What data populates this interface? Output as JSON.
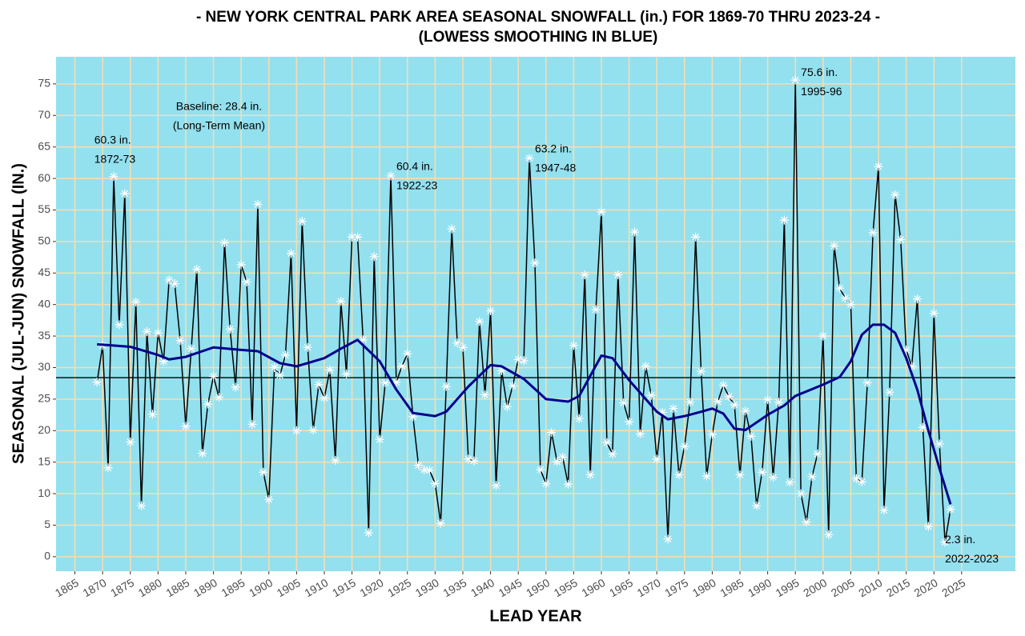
{
  "chart_data": {
    "type": "line",
    "title": [
      "- NEW YORK CENTRAL PARK AREA SEASONAL SNOWFALL (in.) FOR 1869-70 THRU 2023-24 -",
      "(LOWESS SMOOTHING IN BLUE)"
    ],
    "x_label": "LEAD YEAR",
    "y_label": "SEASONAL (JUL-JUN) SNOWFALL (IN.)",
    "x": [
      1869,
      1870,
      1871,
      1872,
      1873,
      1874,
      1875,
      1876,
      1877,
      1878,
      1879,
      1880,
      1881,
      1882,
      1883,
      1884,
      1885,
      1886,
      1887,
      1888,
      1889,
      1890,
      1891,
      1892,
      1893,
      1894,
      1895,
      1896,
      1897,
      1898,
      1899,
      1900,
      1901,
      1902,
      1903,
      1904,
      1905,
      1906,
      1907,
      1908,
      1909,
      1910,
      1911,
      1912,
      1913,
      1914,
      1915,
      1916,
      1917,
      1918,
      1919,
      1920,
      1921,
      1922,
      1923,
      1924,
      1925,
      1926,
      1927,
      1928,
      1929,
      1930,
      1931,
      1932,
      1933,
      1934,
      1935,
      1936,
      1937,
      1938,
      1939,
      1940,
      1941,
      1942,
      1943,
      1944,
      1945,
      1946,
      1947,
      1948,
      1949,
      1950,
      1951,
      1952,
      1953,
      1954,
      1955,
      1956,
      1957,
      1958,
      1959,
      1960,
      1961,
      1962,
      1963,
      1964,
      1965,
      1966,
      1967,
      1968,
      1969,
      1970,
      1971,
      1972,
      1973,
      1974,
      1975,
      1976,
      1977,
      1978,
      1979,
      1980,
      1981,
      1982,
      1983,
      1984,
      1985,
      1986,
      1987,
      1988,
      1989,
      1990,
      1991,
      1992,
      1993,
      1994,
      1995,
      1996,
      1997,
      1998,
      1999,
      2000,
      2001,
      2002,
      2003,
      2004,
      2005,
      2006,
      2007,
      2008,
      2009,
      2010,
      2011,
      2012,
      2013,
      2014,
      2015,
      2016,
      2017,
      2018,
      2019,
      2020,
      2021,
      2022,
      2023
    ],
    "series": [
      {
        "name": "Seasonal snowfall",
        "color": "#000000",
        "marker_color": "#ffffff",
        "values": [
          27.7,
          33.5,
          14.1,
          60.3,
          36.8,
          57.6,
          18.2,
          40.4,
          8.1,
          35.7,
          22.6,
          35.5,
          31.0,
          43.9,
          43.3,
          34.3,
          20.7,
          33.0,
          45.6,
          16.4,
          24.2,
          28.6,
          25.3,
          49.8,
          36.1,
          26.9,
          46.3,
          43.6,
          21.0,
          55.9,
          13.4,
          9.1,
          30.0,
          28.8,
          32.0,
          48.1,
          20.0,
          53.2,
          33.2,
          20.1,
          27.3,
          25.2,
          29.6,
          15.3,
          40.5,
          29.0,
          50.7,
          50.7,
          34.4,
          3.8,
          47.6,
          18.6,
          27.6,
          60.4,
          27.7,
          30.2,
          32.2,
          22.2,
          14.5,
          13.8,
          13.7,
          11.6,
          5.3,
          27.0,
          52.0,
          33.9,
          33.2,
          15.5,
          15.2,
          37.3,
          25.7,
          39.0,
          11.3,
          29.5,
          23.8,
          27.1,
          31.3,
          31.1,
          63.2,
          46.6,
          13.8,
          11.6,
          19.7,
          15.1,
          15.8,
          11.5,
          33.5,
          21.9,
          44.7,
          13.0,
          39.2,
          54.7,
          18.1,
          16.3,
          44.7,
          24.4,
          21.4,
          51.5,
          19.5,
          30.2,
          25.6,
          15.5,
          22.9,
          2.8,
          23.5,
          13.0,
          17.5,
          24.5,
          50.7,
          29.4,
          12.8,
          19.4,
          24.6,
          27.2,
          25.4,
          24.1,
          13.0,
          23.1,
          19.1,
          8.1,
          13.4,
          24.9,
          12.6,
          24.5,
          53.4,
          11.8,
          75.6,
          10.0,
          5.5,
          12.7,
          16.3,
          35.0,
          3.5,
          49.3,
          42.6,
          41.0,
          40.0,
          12.4,
          11.9,
          27.6,
          51.4,
          61.9,
          7.4,
          26.1,
          57.4,
          50.3,
          32.8,
          30.2,
          40.9,
          20.5,
          4.8,
          38.6,
          17.9,
          2.3,
          7.5
        ]
      },
      {
        "name": "LOWESS",
        "color": "#00008b",
        "x": [
          1869,
          1875,
          1880,
          1882,
          1885,
          1890,
          1895,
          1898,
          1902,
          1905,
          1910,
          1913,
          1916,
          1920,
          1923,
          1926,
          1930,
          1932,
          1936,
          1940,
          1942,
          1946,
          1950,
          1954,
          1956,
          1960,
          1962,
          1965,
          1970,
          1972,
          1975,
          1978,
          1980,
          1982,
          1984,
          1986,
          1990,
          1993,
          1995,
          2000,
          2003,
          2005,
          2007,
          2009,
          2011,
          2013,
          2015,
          2017,
          2019,
          2021,
          2023
        ],
        "values": [
          33.7,
          33.3,
          32.0,
          31.3,
          31.7,
          33.2,
          32.8,
          32.6,
          30.7,
          30.2,
          31.5,
          33.0,
          34.4,
          31.0,
          26.5,
          22.8,
          22.3,
          23.0,
          27.0,
          30.4,
          30.2,
          28.2,
          25.0,
          24.6,
          25.5,
          31.9,
          31.5,
          28.0,
          23.0,
          21.8,
          22.3,
          23.0,
          23.5,
          22.7,
          20.3,
          20.1,
          22.5,
          24.0,
          25.5,
          27.3,
          28.5,
          31.0,
          35.2,
          36.8,
          36.8,
          35.5,
          31.5,
          26.5,
          20.0,
          14.0,
          8.3
        ]
      }
    ],
    "baseline": 28.4,
    "annotations": [
      {
        "text": [
          "Baseline: 28.4 in.",
          "(Long-Term Mean)"
        ],
        "x": 1891,
        "y": 71.3,
        "anchor": "middle"
      },
      {
        "text": [
          "60.3 in.",
          "1872-73"
        ],
        "x": 1868.5,
        "y": 66.0,
        "anchor": "start"
      },
      {
        "text": [
          "60.4 in.",
          "1922-23"
        ],
        "x": 1923,
        "y": 61.8,
        "anchor": "start"
      },
      {
        "text": [
          "63.2 in.",
          "1947-48"
        ],
        "x": 1948,
        "y": 64.6,
        "anchor": "start"
      },
      {
        "text": [
          "75.6 in.",
          "1995-96"
        ],
        "x": 1996,
        "y": 76.7,
        "anchor": "start"
      },
      {
        "text": [
          "2.3 in.",
          "2022-2023"
        ],
        "x": 2022,
        "y": 2.6,
        "anchor": "start"
      }
    ],
    "xlim": [
      1861.6,
      2034.7
    ],
    "ylim": [
      -2.3,
      79.3
    ],
    "xticks": [
      1865,
      1870,
      1875,
      1880,
      1885,
      1890,
      1895,
      1900,
      1905,
      1910,
      1915,
      1920,
      1925,
      1930,
      1935,
      1940,
      1945,
      1950,
      1955,
      1960,
      1965,
      1970,
      1975,
      1980,
      1985,
      1990,
      1995,
      2000,
      2005,
      2010,
      2015,
      2020,
      2025
    ],
    "yticks": [
      0,
      5,
      10,
      15,
      20,
      25,
      30,
      35,
      40,
      45,
      50,
      55,
      60,
      65,
      70,
      75
    ],
    "grid": true,
    "panel_color": "#93e0ef",
    "grid_color": "#f5deb3"
  }
}
